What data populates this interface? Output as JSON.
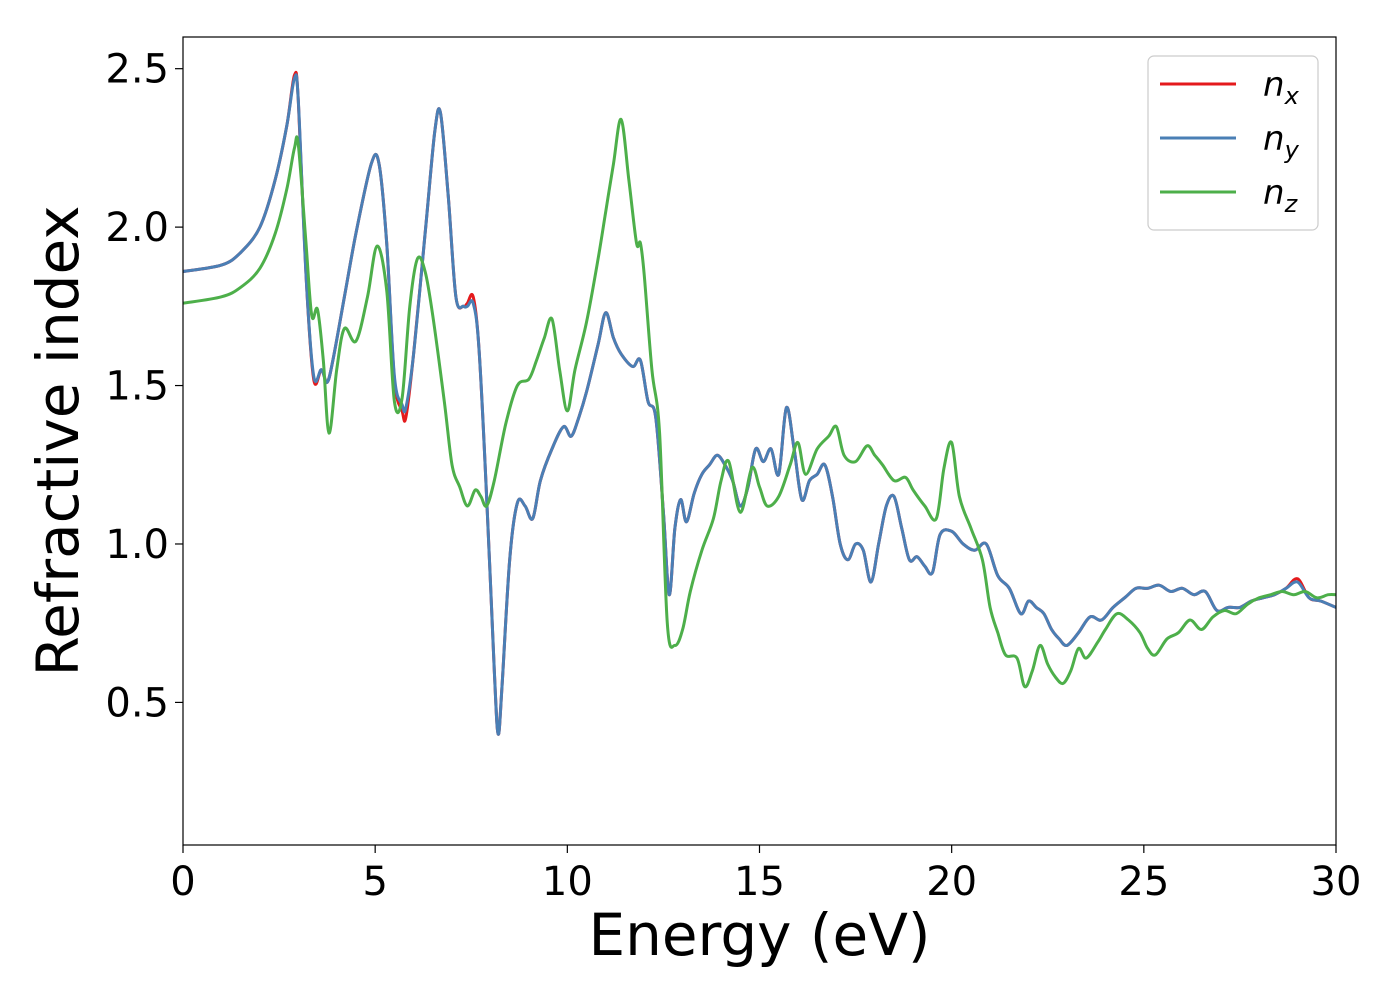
{
  "chart_data": {
    "type": "line",
    "title": "",
    "xlabel": "Energy (eV)",
    "ylabel": "Refractive index",
    "xlim": [
      0,
      30
    ],
    "ylim": [
      0.05,
      2.6
    ],
    "xticks": [
      0,
      5,
      10,
      15,
      20,
      25,
      30
    ],
    "xtick_labels": [
      "0",
      "5",
      "10",
      "15",
      "20",
      "25",
      "30"
    ],
    "yticks": [
      0.5,
      1.0,
      1.5,
      2.0,
      2.5
    ],
    "ytick_labels": [
      "0.5",
      "1.0",
      "1.5",
      "2.0",
      "2.5"
    ],
    "grid": false,
    "legend_position": "top-right",
    "series": [
      {
        "name": "n_x",
        "label_base": "n",
        "label_sub": "x",
        "color": "#e41a1c",
        "x": [
          0,
          1,
          1.5,
          2,
          2.4,
          2.7,
          2.9,
          3.0,
          3.2,
          3.4,
          3.6,
          3.75,
          3.9,
          4.2,
          4.5,
          4.9,
          5.1,
          5.3,
          5.5,
          5.7,
          5.8,
          6.0,
          6.3,
          6.55,
          6.7,
          6.9,
          7.1,
          7.3,
          7.4,
          7.55,
          7.7,
          7.9,
          8.1,
          8.2,
          8.3,
          8.5,
          8.7,
          8.9,
          9.1,
          9.3,
          9.6,
          9.9,
          10.1,
          10.3,
          10.5,
          10.8,
          11.0,
          11.2,
          11.4,
          11.7,
          11.9,
          12.1,
          12.3,
          12.5,
          12.65,
          12.8,
          12.95,
          13.1,
          13.3,
          13.5,
          13.7,
          13.9,
          14.1,
          14.3,
          14.5,
          14.7,
          14.9,
          15.1,
          15.3,
          15.5,
          15.7,
          15.9,
          16.1,
          16.3,
          16.5,
          16.7,
          16.9,
          17.1,
          17.3,
          17.5,
          17.7,
          17.9,
          18.1,
          18.3,
          18.5,
          18.7,
          18.9,
          19.1,
          19.3,
          19.5,
          19.7,
          20.0,
          20.3,
          20.6,
          20.9,
          21.2,
          21.5,
          21.8,
          22.0,
          22.2,
          22.4,
          22.6,
          22.8,
          23.0,
          23.3,
          23.6,
          23.9,
          24.2,
          24.5,
          24.8,
          25.1,
          25.4,
          25.7,
          26.0,
          26.3,
          26.6,
          26.9,
          27.2,
          27.5,
          27.8,
          28.1,
          28.4,
          28.7,
          29.0,
          29.3,
          29.6,
          30.0
        ],
        "y": [
          1.86,
          1.88,
          1.92,
          2.0,
          2.15,
          2.32,
          2.48,
          2.4,
          1.85,
          1.52,
          1.55,
          1.51,
          1.58,
          1.78,
          1.98,
          2.2,
          2.2,
          1.95,
          1.52,
          1.42,
          1.4,
          1.6,
          1.98,
          2.3,
          2.36,
          2.1,
          1.78,
          1.75,
          1.76,
          1.78,
          1.62,
          1.15,
          0.6,
          0.4,
          0.55,
          0.95,
          1.13,
          1.12,
          1.08,
          1.2,
          1.3,
          1.37,
          1.34,
          1.4,
          1.48,
          1.63,
          1.73,
          1.65,
          1.6,
          1.56,
          1.58,
          1.45,
          1.4,
          1.1,
          0.84,
          1.05,
          1.14,
          1.07,
          1.16,
          1.22,
          1.25,
          1.28,
          1.25,
          1.2,
          1.12,
          1.18,
          1.3,
          1.26,
          1.3,
          1.22,
          1.43,
          1.3,
          1.14,
          1.2,
          1.22,
          1.25,
          1.15,
          1.0,
          0.95,
          1.0,
          0.98,
          0.88,
          1.0,
          1.12,
          1.15,
          1.05,
          0.95,
          0.96,
          0.93,
          0.91,
          1.03,
          1.04,
          1.0,
          0.98,
          1.0,
          0.9,
          0.86,
          0.78,
          0.82,
          0.8,
          0.78,
          0.73,
          0.7,
          0.68,
          0.72,
          0.77,
          0.76,
          0.8,
          0.83,
          0.86,
          0.86,
          0.87,
          0.85,
          0.86,
          0.84,
          0.85,
          0.79,
          0.8,
          0.8,
          0.82,
          0.83,
          0.84,
          0.86,
          0.89,
          0.83,
          0.82,
          0.8
        ]
      },
      {
        "name": "n_y",
        "label_base": "n",
        "label_sub": "y",
        "color": "#4a7fb5",
        "x": [
          0,
          1,
          1.5,
          2,
          2.4,
          2.7,
          2.9,
          3.0,
          3.2,
          3.4,
          3.6,
          3.75,
          3.9,
          4.2,
          4.5,
          4.9,
          5.1,
          5.3,
          5.5,
          5.7,
          5.8,
          6.0,
          6.3,
          6.55,
          6.7,
          6.9,
          7.1,
          7.3,
          7.4,
          7.55,
          7.7,
          7.9,
          8.1,
          8.2,
          8.3,
          8.5,
          8.7,
          8.9,
          9.1,
          9.3,
          9.6,
          9.9,
          10.1,
          10.3,
          10.5,
          10.8,
          11.0,
          11.2,
          11.4,
          11.7,
          11.9,
          12.1,
          12.3,
          12.5,
          12.65,
          12.8,
          12.95,
          13.1,
          13.3,
          13.5,
          13.7,
          13.9,
          14.1,
          14.3,
          14.5,
          14.7,
          14.9,
          15.1,
          15.3,
          15.5,
          15.7,
          15.9,
          16.1,
          16.3,
          16.5,
          16.7,
          16.9,
          17.1,
          17.3,
          17.5,
          17.7,
          17.9,
          18.1,
          18.3,
          18.5,
          18.7,
          18.9,
          19.1,
          19.3,
          19.5,
          19.7,
          20.0,
          20.3,
          20.6,
          20.9,
          21.2,
          21.5,
          21.8,
          22.0,
          22.2,
          22.4,
          22.6,
          22.8,
          23.0,
          23.3,
          23.6,
          23.9,
          24.2,
          24.5,
          24.8,
          25.1,
          25.4,
          25.7,
          26.0,
          26.3,
          26.6,
          26.9,
          27.2,
          27.5,
          27.8,
          28.1,
          28.4,
          28.7,
          29.0,
          29.3,
          29.6,
          30.0
        ],
        "y": [
          1.86,
          1.88,
          1.92,
          2.0,
          2.15,
          2.32,
          2.47,
          2.4,
          1.85,
          1.53,
          1.55,
          1.51,
          1.58,
          1.78,
          1.98,
          2.2,
          2.2,
          1.95,
          1.53,
          1.44,
          1.43,
          1.6,
          1.98,
          2.3,
          2.36,
          2.1,
          1.78,
          1.75,
          1.75,
          1.76,
          1.62,
          1.15,
          0.6,
          0.4,
          0.55,
          0.95,
          1.13,
          1.12,
          1.08,
          1.2,
          1.3,
          1.37,
          1.34,
          1.4,
          1.48,
          1.63,
          1.73,
          1.65,
          1.6,
          1.56,
          1.58,
          1.45,
          1.4,
          1.1,
          0.84,
          1.05,
          1.14,
          1.07,
          1.16,
          1.22,
          1.25,
          1.28,
          1.25,
          1.2,
          1.12,
          1.18,
          1.3,
          1.26,
          1.3,
          1.22,
          1.43,
          1.3,
          1.14,
          1.2,
          1.22,
          1.25,
          1.15,
          1.0,
          0.95,
          1.0,
          0.98,
          0.88,
          1.0,
          1.12,
          1.15,
          1.05,
          0.95,
          0.96,
          0.93,
          0.91,
          1.03,
          1.04,
          1.0,
          0.98,
          1.0,
          0.9,
          0.86,
          0.78,
          0.82,
          0.8,
          0.78,
          0.73,
          0.7,
          0.68,
          0.72,
          0.77,
          0.76,
          0.8,
          0.83,
          0.86,
          0.86,
          0.87,
          0.85,
          0.86,
          0.84,
          0.85,
          0.79,
          0.8,
          0.8,
          0.82,
          0.83,
          0.84,
          0.86,
          0.88,
          0.83,
          0.82,
          0.8
        ]
      },
      {
        "name": "n_z",
        "label_base": "n",
        "label_sub": "z",
        "color": "#4daf4a",
        "x": [
          0,
          1,
          1.5,
          2,
          2.4,
          2.7,
          2.9,
          3.0,
          3.2,
          3.35,
          3.5,
          3.65,
          3.8,
          4.0,
          4.2,
          4.5,
          4.8,
          5.05,
          5.3,
          5.5,
          5.7,
          5.9,
          6.1,
          6.3,
          6.5,
          6.8,
          7.0,
          7.2,
          7.4,
          7.6,
          7.75,
          7.9,
          8.1,
          8.4,
          8.7,
          9.0,
          9.2,
          9.4,
          9.6,
          9.8,
          10.0,
          10.2,
          10.5,
          10.8,
          11.0,
          11.2,
          11.4,
          11.6,
          11.8,
          11.9,
          12.0,
          12.2,
          12.4,
          12.6,
          12.8,
          13.0,
          13.2,
          13.5,
          13.8,
          14.0,
          14.2,
          14.5,
          14.8,
          15.0,
          15.2,
          15.5,
          15.8,
          16.0,
          16.2,
          16.5,
          16.8,
          17.0,
          17.2,
          17.5,
          17.8,
          18.0,
          18.2,
          18.5,
          18.8,
          19.0,
          19.3,
          19.6,
          19.8,
          20.0,
          20.2,
          20.5,
          20.8,
          21.0,
          21.2,
          21.4,
          21.7,
          21.9,
          22.1,
          22.3,
          22.5,
          22.7,
          22.9,
          23.1,
          23.3,
          23.5,
          23.8,
          24.0,
          24.3,
          24.6,
          24.9,
          25.1,
          25.3,
          25.6,
          25.9,
          26.2,
          26.5,
          26.8,
          27.1,
          27.4,
          27.7,
          28.0,
          28.3,
          28.6,
          28.9,
          29.2,
          29.5,
          29.8,
          30.0
        ],
        "y": [
          1.76,
          1.78,
          1.81,
          1.87,
          1.98,
          2.12,
          2.25,
          2.26,
          1.95,
          1.72,
          1.74,
          1.58,
          1.35,
          1.55,
          1.68,
          1.64,
          1.78,
          1.94,
          1.8,
          1.45,
          1.46,
          1.75,
          1.9,
          1.86,
          1.72,
          1.45,
          1.25,
          1.18,
          1.12,
          1.17,
          1.15,
          1.12,
          1.2,
          1.38,
          1.5,
          1.52,
          1.58,
          1.65,
          1.71,
          1.55,
          1.42,
          1.55,
          1.7,
          1.9,
          2.05,
          2.2,
          2.34,
          2.15,
          1.95,
          1.95,
          1.85,
          1.55,
          1.35,
          0.75,
          0.68,
          0.73,
          0.85,
          0.98,
          1.08,
          1.2,
          1.26,
          1.1,
          1.24,
          1.18,
          1.12,
          1.15,
          1.25,
          1.32,
          1.22,
          1.3,
          1.34,
          1.37,
          1.28,
          1.26,
          1.31,
          1.28,
          1.25,
          1.2,
          1.21,
          1.17,
          1.12,
          1.08,
          1.24,
          1.32,
          1.15,
          1.05,
          0.95,
          0.8,
          0.72,
          0.65,
          0.64,
          0.55,
          0.6,
          0.68,
          0.62,
          0.58,
          0.56,
          0.6,
          0.67,
          0.64,
          0.69,
          0.73,
          0.78,
          0.76,
          0.72,
          0.67,
          0.65,
          0.7,
          0.72,
          0.76,
          0.73,
          0.77,
          0.79,
          0.78,
          0.81,
          0.83,
          0.84,
          0.85,
          0.84,
          0.85,
          0.83,
          0.84,
          0.84
        ]
      }
    ]
  }
}
